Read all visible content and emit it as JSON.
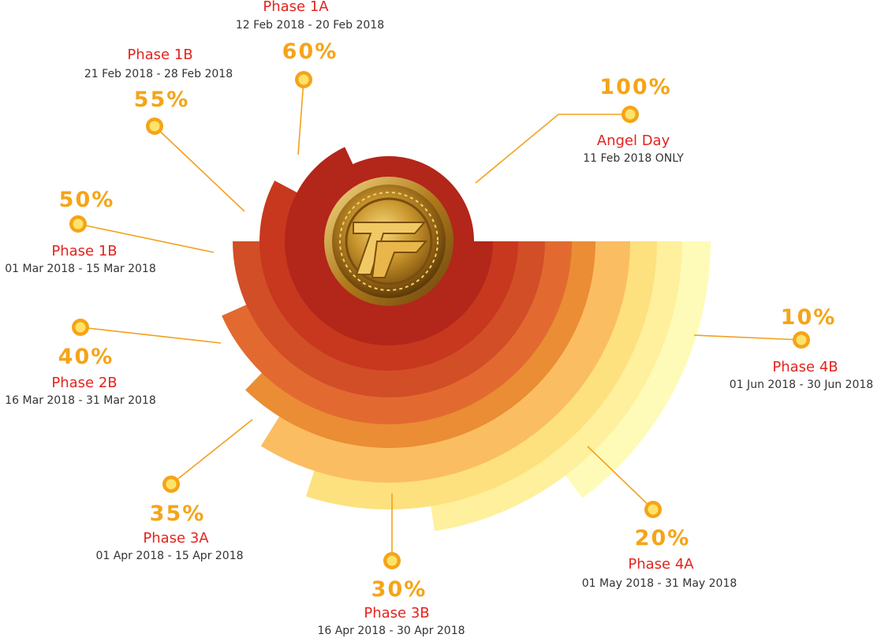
{
  "stages": [
    {
      "id": "angel-day",
      "percent": "100%",
      "phase": "Angel Day",
      "dates": "11 Feb 2018 ONLY",
      "color": "#b3261a"
    },
    {
      "id": "phase-1a",
      "percent": "60%",
      "phase": "Phase 1A",
      "dates": "12 Feb 2018 - 20 Feb 2018",
      "color": "#c7381e"
    },
    {
      "id": "phase-1b-55",
      "percent": "55%",
      "phase": "Phase 1B",
      "dates": "21 Feb 2018 - 28 Feb 2018",
      "color": "#d24e27"
    },
    {
      "id": "phase-1b-50",
      "percent": "50%",
      "phase": "Phase 1B",
      "dates": "01 Mar 2018 - 15 Mar 2018",
      "color": "#e26a30"
    },
    {
      "id": "phase-2b",
      "percent": "40%",
      "phase": "Phase 2B",
      "dates": "16 Mar 2018 - 31 Mar 2018",
      "color": "#ea8d35"
    },
    {
      "id": "phase-3a",
      "percent": "35%",
      "phase": "Phase 3A",
      "dates": "01 Apr 2018 - 15 Apr 2018",
      "color": "#fbbd62"
    },
    {
      "id": "phase-3b",
      "percent": "30%",
      "phase": "Phase 3B",
      "dates": "16 Apr 2018 - 30 Apr 2018",
      "color": "#fde17f"
    },
    {
      "id": "phase-4a",
      "percent": "20%",
      "phase": "Phase 4A",
      "dates": "01 May 2018 - 31 May 2018",
      "color": "#fef09c"
    },
    {
      "id": "phase-4b",
      "percent": "10%",
      "phase": "Phase 4B",
      "dates": "01 Jun 2018 - 30 Jun 2018",
      "color": "#fefbb8"
    }
  ],
  "logo": {
    "name": "coin-logo-icon"
  }
}
